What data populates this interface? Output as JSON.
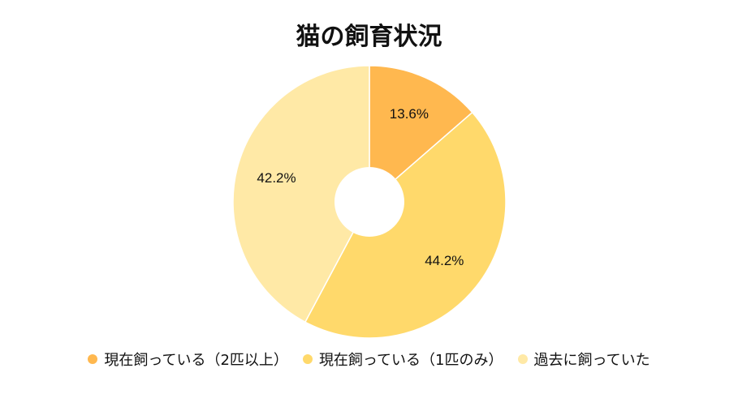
{
  "chart_data": {
    "type": "pie",
    "title": "猫の飼育状況",
    "donut": true,
    "categories": [
      "現在飼っている（2匹以上）",
      "現在飼っている（1匹のみ）",
      "過去に飼っていた"
    ],
    "values": [
      13.6,
      44.2,
      42.2
    ],
    "labels": [
      "13.6%",
      "44.2%",
      "42.2%"
    ],
    "colors": [
      "#FFB84F",
      "#FFD96B",
      "#FFE9A6"
    ],
    "legend_position": "bottom"
  }
}
